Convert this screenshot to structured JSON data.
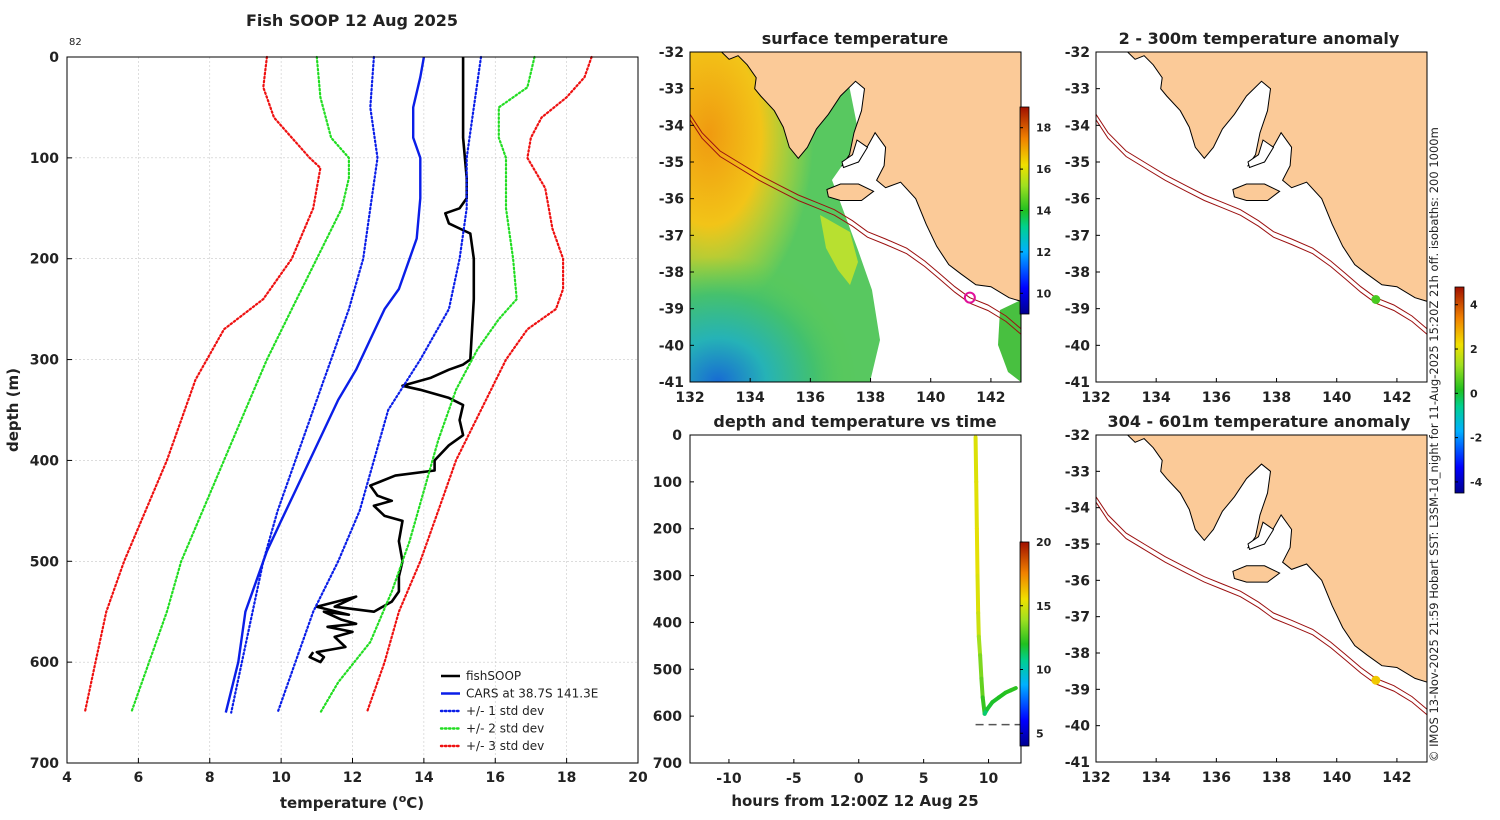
{
  "chart_data": [
    {
      "type": "line",
      "id": "profile",
      "title": "Fish SOOP 12 Aug 2025",
      "corner_label": "82",
      "xlabel": "temperature (",
      "xlabel_unit": "o",
      "xlabel_end": "C)",
      "ylabel": "depth (m)",
      "xlim": [
        4,
        20
      ],
      "ylim": [
        0,
        700
      ],
      "y_reversed": true,
      "xticks": [
        4,
        6,
        8,
        10,
        12,
        14,
        16,
        18,
        20
      ],
      "yticks": [
        0,
        100,
        200,
        300,
        400,
        500,
        600,
        700
      ],
      "grid": true,
      "legend_position": "bottom-right",
      "series": [
        {
          "name": "fishSOOP",
          "color": "#000000",
          "style": "solid",
          "width": 2.6,
          "points": [
            [
              15.1,
              0
            ],
            [
              15.1,
              40
            ],
            [
              15.1,
              80
            ],
            [
              15.2,
              120
            ],
            [
              15.2,
              140
            ],
            [
              15.0,
              150
            ],
            [
              14.6,
              155
            ],
            [
              14.7,
              165
            ],
            [
              15.0,
              170
            ],
            [
              15.3,
              175
            ],
            [
              15.4,
              200
            ],
            [
              15.4,
              240
            ],
            [
              15.3,
              300
            ],
            [
              15.1,
              305
            ],
            [
              14.7,
              310
            ],
            [
              14.2,
              318
            ],
            [
              13.4,
              326
            ],
            [
              13.9,
              330
            ],
            [
              14.7,
              338
            ],
            [
              15.1,
              345
            ],
            [
              15.0,
              360
            ],
            [
              15.1,
              375
            ],
            [
              14.7,
              385
            ],
            [
              14.3,
              400
            ],
            [
              14.3,
              410
            ],
            [
              13.2,
              415
            ],
            [
              12.5,
              425
            ],
            [
              12.7,
              435
            ],
            [
              13.1,
              440
            ],
            [
              12.6,
              445
            ],
            [
              12.9,
              455
            ],
            [
              13.4,
              460
            ],
            [
              13.3,
              480
            ],
            [
              13.4,
              500
            ],
            [
              13.3,
              515
            ],
            [
              13.3,
              530
            ],
            [
              13.1,
              540
            ],
            [
              12.6,
              550
            ],
            [
              11.5,
              545
            ],
            [
              12.1,
              535
            ],
            [
              11.0,
              545
            ],
            [
              11.9,
              553
            ],
            [
              11.2,
              550
            ],
            [
              11.7,
              558
            ],
            [
              12.1,
              562
            ],
            [
              11.3,
              565
            ],
            [
              12.0,
              570
            ],
            [
              11.5,
              575
            ],
            [
              11.8,
              585
            ],
            [
              11.0,
              590
            ],
            [
              11.2,
              595
            ],
            [
              11.1,
              600
            ],
            [
              10.8,
              595
            ],
            [
              10.9,
              590
            ]
          ]
        },
        {
          "name": "CARS at 38.7S 141.3E",
          "color": "#0a1ee8",
          "style": "solid",
          "width": 2.4,
          "points": [
            [
              14.0,
              0
            ],
            [
              13.9,
              20
            ],
            [
              13.7,
              50
            ],
            [
              13.7,
              80
            ],
            [
              13.9,
              100
            ],
            [
              13.9,
              140
            ],
            [
              13.8,
              180
            ],
            [
              13.6,
              200
            ],
            [
              13.3,
              230
            ],
            [
              12.9,
              250
            ],
            [
              12.5,
              280
            ],
            [
              12.1,
              310
            ],
            [
              11.6,
              340
            ],
            [
              11.2,
              370
            ],
            [
              10.8,
              400
            ],
            [
              10.4,
              430
            ],
            [
              10.0,
              460
            ],
            [
              9.6,
              490
            ],
            [
              9.3,
              520
            ],
            [
              9.0,
              550
            ],
            [
              8.8,
              600
            ],
            [
              8.45,
              650
            ]
          ]
        },
        {
          "name": "+/- 1 std dev",
          "color": "#0a1ee8",
          "style": "dotted",
          "width": 2.2,
          "points": [
            [
              12.6,
              0
            ],
            [
              12.5,
              50
            ],
            [
              12.7,
              100
            ],
            [
              12.5,
              150
            ],
            [
              12.3,
              200
            ],
            [
              11.9,
              250
            ],
            [
              11.4,
              300
            ],
            [
              10.9,
              350
            ],
            [
              10.4,
              400
            ],
            [
              9.9,
              450
            ],
            [
              9.5,
              500
            ],
            [
              9.2,
              550
            ],
            [
              8.9,
              600
            ],
            [
              8.6,
              650
            ]
          ]
        },
        {
          "name": "+/- 1 std dev",
          "color": "#0a1ee8",
          "style": "dotted",
          "width": 2.2,
          "points": [
            [
              15.6,
              0
            ],
            [
              15.4,
              50
            ],
            [
              15.2,
              100
            ],
            [
              15.2,
              150
            ],
            [
              15.0,
              200
            ],
            [
              14.7,
              250
            ],
            [
              13.9,
              300
            ],
            [
              13.0,
              350
            ],
            [
              12.6,
              400
            ],
            [
              12.2,
              450
            ],
            [
              11.6,
              500
            ],
            [
              10.9,
              550
            ],
            [
              10.4,
              600
            ],
            [
              9.9,
              650
            ]
          ]
        },
        {
          "name": "+/- 2 std dev",
          "color": "#22dd22",
          "style": "dotted",
          "width": 2.2,
          "points": [
            [
              11.0,
              0
            ],
            [
              11.1,
              40
            ],
            [
              11.4,
              80
            ],
            [
              11.9,
              100
            ],
            [
              11.9,
              120
            ],
            [
              11.7,
              150
            ],
            [
              11.0,
              200
            ],
            [
              10.3,
              250
            ],
            [
              9.6,
              300
            ],
            [
              9.0,
              350
            ],
            [
              8.4,
              400
            ],
            [
              7.8,
              450
            ],
            [
              7.2,
              500
            ],
            [
              6.8,
              550
            ],
            [
              6.3,
              600
            ],
            [
              5.8,
              650
            ]
          ]
        },
        {
          "name": "+/- 2 std dev",
          "color": "#22dd22",
          "style": "dotted",
          "width": 2.2,
          "points": [
            [
              17.1,
              0
            ],
            [
              16.9,
              30
            ],
            [
              16.1,
              50
            ],
            [
              16.1,
              80
            ],
            [
              16.3,
              100
            ],
            [
              16.3,
              150
            ],
            [
              16.5,
              200
            ],
            [
              16.6,
              240
            ],
            [
              16.1,
              260
            ],
            [
              15.5,
              290
            ],
            [
              14.9,
              330
            ],
            [
              14.4,
              380
            ],
            [
              14.0,
              430
            ],
            [
              13.6,
              480
            ],
            [
              13.1,
              530
            ],
            [
              12.5,
              580
            ],
            [
              11.6,
              620
            ],
            [
              11.1,
              650
            ]
          ]
        },
        {
          "name": "+/- 3 std dev",
          "color": "#ee1111",
          "style": "dotted",
          "width": 2.2,
          "points": [
            [
              9.6,
              0
            ],
            [
              9.5,
              30
            ],
            [
              9.8,
              60
            ],
            [
              10.3,
              80
            ],
            [
              10.8,
              100
            ],
            [
              11.1,
              110
            ],
            [
              10.9,
              150
            ],
            [
              10.3,
              200
            ],
            [
              9.5,
              240
            ],
            [
              8.4,
              270
            ],
            [
              7.6,
              320
            ],
            [
              6.8,
              400
            ],
            [
              6.2,
              450
            ],
            [
              5.6,
              500
            ],
            [
              5.1,
              550
            ],
            [
              4.8,
              600
            ],
            [
              4.5,
              650
            ]
          ]
        },
        {
          "name": "+/- 3 std dev",
          "color": "#ee1111",
          "style": "dotted",
          "width": 2.2,
          "points": [
            [
              18.7,
              0
            ],
            [
              18.5,
              20
            ],
            [
              18.0,
              40
            ],
            [
              17.3,
              60
            ],
            [
              17.0,
              80
            ],
            [
              16.9,
              100
            ],
            [
              17.4,
              130
            ],
            [
              17.6,
              170
            ],
            [
              17.9,
              200
            ],
            [
              17.9,
              230
            ],
            [
              17.7,
              250
            ],
            [
              16.9,
              270
            ],
            [
              16.3,
              300
            ],
            [
              15.6,
              350
            ],
            [
              14.9,
              400
            ],
            [
              14.4,
              450
            ],
            [
              13.9,
              500
            ],
            [
              13.3,
              550
            ],
            [
              12.9,
              600
            ],
            [
              12.4,
              650
            ]
          ]
        }
      ],
      "legend": [
        {
          "label": "fishSOOP",
          "color": "#000000",
          "style": "solid"
        },
        {
          "label": "CARS at 38.7S 141.3E",
          "color": "#0a1ee8",
          "style": "solid"
        },
        {
          "label": "+/- 1 std dev",
          "color": "#0a1ee8",
          "style": "dotted"
        },
        {
          "label": "+/- 2 std dev",
          "color": "#22dd22",
          "style": "dotted"
        },
        {
          "label": "+/- 3 std dev",
          "color": "#ee1111",
          "style": "dotted"
        }
      ]
    },
    {
      "type": "heatmap",
      "id": "sst_map",
      "title": "surface temperature",
      "xlim": [
        132,
        143
      ],
      "ylim": [
        -41,
        -32
      ],
      "xticks": [
        132,
        134,
        136,
        138,
        140,
        142
      ],
      "yticks": [
        -32,
        -33,
        -34,
        -35,
        -36,
        -37,
        -38,
        -39,
        -40,
        -41
      ],
      "colorbar": {
        "range": [
          9,
          19
        ],
        "ticks": [
          10,
          12,
          14,
          16,
          18
        ]
      },
      "marker": {
        "lon": 141.3,
        "lat": -38.7,
        "color": "#e0109a"
      }
    },
    {
      "type": "scatter",
      "id": "depth_time",
      "title": "depth and temperature vs time",
      "xlabel": "hours from 12:00Z 12 Aug 25",
      "xlim": [
        -13,
        12.5
      ],
      "ylim": [
        0,
        700
      ],
      "y_reversed": true,
      "xticks": [
        -10,
        -5,
        0,
        5,
        10
      ],
      "yticks": [
        0,
        100,
        200,
        300,
        400,
        500,
        600,
        700
      ],
      "colorbar": {
        "range": [
          4,
          20
        ],
        "ticks": [
          5,
          10,
          15,
          20
        ]
      },
      "bottom_line_depth": 618,
      "points": [
        [
          9.0,
          5,
          15.1
        ],
        [
          9.05,
          100,
          15.2
        ],
        [
          9.1,
          200,
          15.3
        ],
        [
          9.15,
          300,
          15.1
        ],
        [
          9.2,
          380,
          14.8
        ],
        [
          9.25,
          430,
          14.0
        ],
        [
          9.35,
          470,
          13.4
        ],
        [
          9.45,
          520,
          13.0
        ],
        [
          9.55,
          560,
          12.3
        ],
        [
          9.7,
          595,
          11.1
        ],
        [
          9.9,
          585,
          11.8
        ],
        [
          10.3,
          570,
          11.9
        ],
        [
          10.8,
          560,
          12.0
        ],
        [
          11.3,
          550,
          12.1
        ],
        [
          11.7,
          545,
          12.2
        ],
        [
          12.1,
          540,
          12.4
        ]
      ]
    },
    {
      "type": "heatmap",
      "id": "anom_top",
      "title": "2 - 300m temperature anomaly",
      "xlim": [
        132,
        143
      ],
      "ylim": [
        -41,
        -32
      ],
      "xticks": [
        132,
        134,
        136,
        138,
        140,
        142
      ],
      "yticks": [
        -32,
        -33,
        -34,
        -35,
        -36,
        -37,
        -38,
        -39,
        -40,
        -41
      ],
      "marker": {
        "lon": 141.3,
        "lat": -38.75,
        "value": 0.5
      }
    },
    {
      "type": "heatmap",
      "id": "anom_bottom",
      "title": "304 - 601m temperature anomaly",
      "xlim": [
        132,
        143
      ],
      "ylim": [
        -41,
        -32
      ],
      "xticks": [
        132,
        134,
        136,
        138,
        140,
        142
      ],
      "yticks": [
        -32,
        -33,
        -34,
        -35,
        -36,
        -37,
        -38,
        -39,
        -40,
        -41
      ],
      "marker": {
        "lon": 141.3,
        "lat": -38.75,
        "value": 2.5
      }
    }
  ],
  "anomaly_colorbar": {
    "range": [
      -4.5,
      4.8
    ],
    "ticks": [
      -4,
      -2,
      0,
      2,
      4
    ]
  },
  "credit": "© IMOS 13-Nov-2025 21:59 Hobart SST: L3SM-1d_night for 11-Aug-2025 15:20Z 21h off. isobaths: 200  1000m",
  "colors": {
    "land": "#fbca98",
    "isobath": "#9b1010",
    "grid": "#c8c8c8",
    "axis": "#000000"
  }
}
